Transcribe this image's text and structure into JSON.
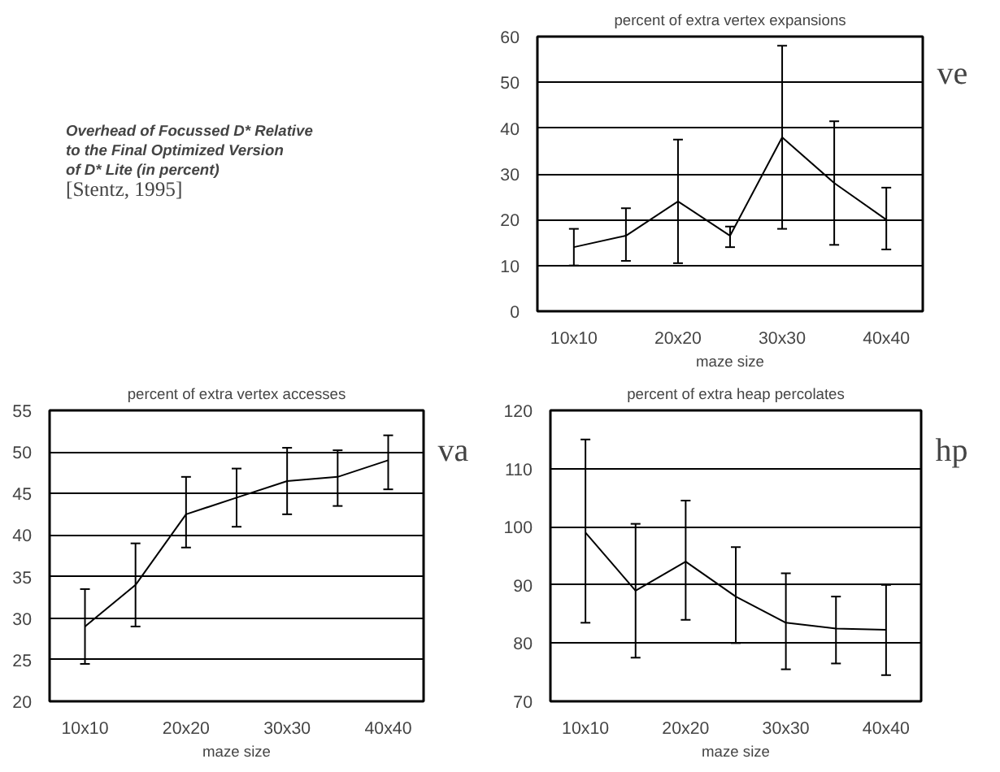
{
  "chart_data": [
    {
      "type": "other",
      "title": "Overhead of Focussed D* Relative\n to the Final Optimized Version\nof D* Lite (in percent)",
      "annotations": [
        "[Stentz, 1995]"
      ]
    },
    {
      "type": "line",
      "title": "percent of extra vertex expansions",
      "xlabel": "maze size",
      "categories": [
        "10x10",
        null,
        "20x20",
        null,
        "30x30",
        null,
        "40x40"
      ],
      "values": [
        14,
        16.5,
        24,
        16.5,
        38,
        28,
        20
      ],
      "errors": [
        [
          10,
          18
        ],
        [
          11,
          22.5
        ],
        [
          10.5,
          37.5
        ],
        [
          14,
          18.5
        ],
        [
          18,
          58
        ],
        [
          14.5,
          41.5
        ],
        [
          13.5,
          27
        ]
      ],
      "color": "#000000",
      "ylim": [
        0,
        60
      ],
      "yticks": [
        0,
        10,
        20,
        30,
        40,
        50,
        60
      ],
      "grid": "y",
      "marker": "none",
      "annotations": [
        "ve"
      ]
    },
    {
      "type": "line",
      "title": "percent of extra vertex accesses",
      "xlabel": "maze size",
      "categories": [
        "10x10",
        null,
        "20x20",
        null,
        "30x30",
        null,
        "40x40"
      ],
      "values": [
        29,
        34,
        42.5,
        44.5,
        46.5,
        47,
        49
      ],
      "errors": [
        [
          24.5,
          33.5
        ],
        [
          29,
          39
        ],
        [
          38.5,
          47
        ],
        [
          41,
          48
        ],
        [
          42.5,
          50.5
        ],
        [
          43.5,
          50.2
        ],
        [
          45.5,
          52
        ]
      ],
      "color": "#000000",
      "ylim": [
        20,
        55
      ],
      "yticks": [
        20,
        25,
        30,
        35,
        40,
        45,
        50,
        55
      ],
      "grid": "y",
      "marker": "none",
      "annotations": [
        "va"
      ]
    },
    {
      "type": "line",
      "title": "percent of extra heap percolates",
      "xlabel": "maze size",
      "categories": [
        "10x10",
        null,
        "20x20",
        null,
        "30x30",
        null,
        "40x40"
      ],
      "values": [
        99,
        89,
        94,
        88,
        83.5,
        82.5,
        82.3
      ],
      "errors": [
        [
          83.5,
          115
        ],
        [
          77.5,
          100.5
        ],
        [
          84,
          104.5
        ],
        [
          80,
          96.5
        ],
        [
          75.5,
          92
        ],
        [
          76.5,
          88
        ],
        [
          74.5,
          90
        ]
      ],
      "color": "#000000",
      "ylim": [
        70,
        120
      ],
      "yticks": [
        70,
        80,
        90,
        100,
        110,
        120
      ],
      "grid": "y",
      "marker": "none",
      "annotations": [
        "hp"
      ]
    }
  ]
}
